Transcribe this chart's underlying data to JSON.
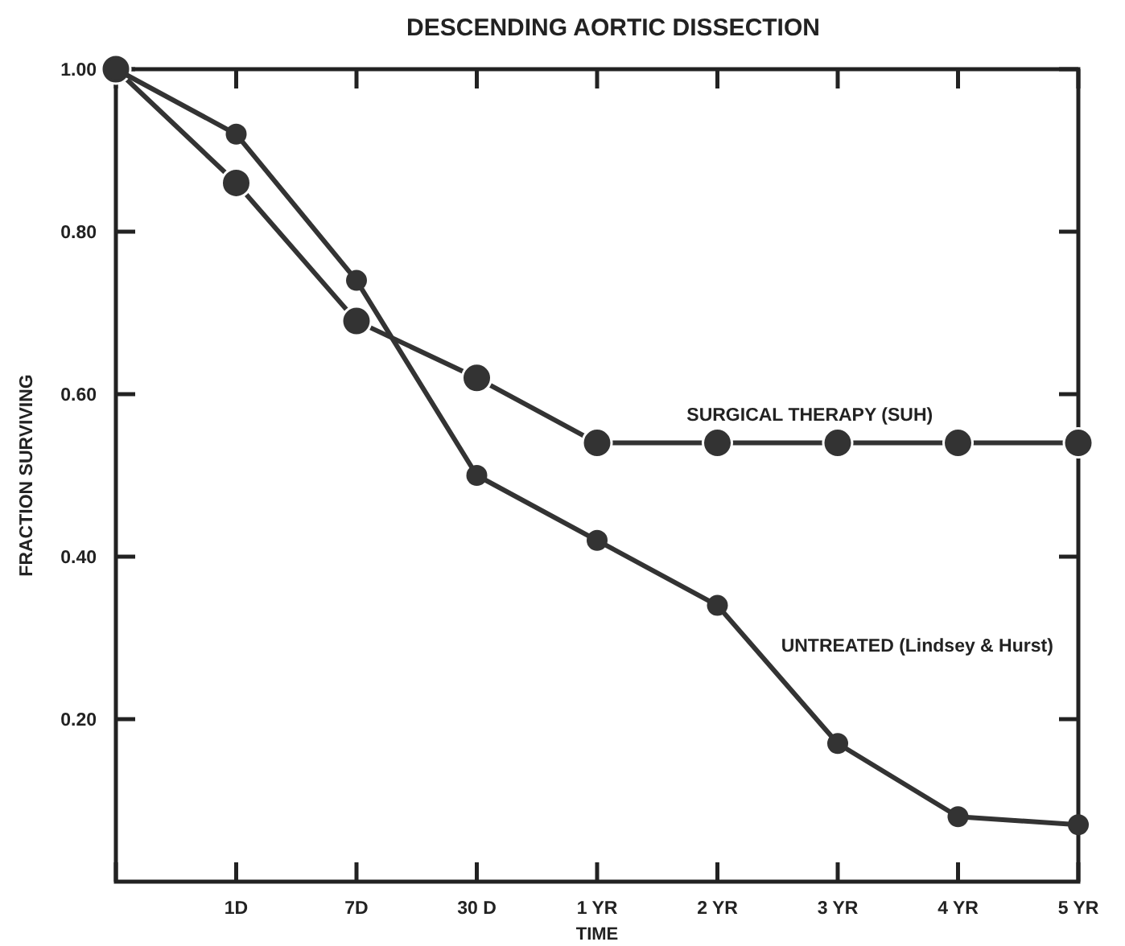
{
  "chart_data": {
    "type": "line",
    "title": "DESCENDING AORTIC DISSECTION",
    "xlabel": "TIME",
    "ylabel": "FRACTION SURVIVING",
    "categories": [
      null,
      "1D",
      "7D",
      "30 D",
      "1 YR",
      "2 YR",
      "3 YR",
      "4 YR",
      "5 YR"
    ],
    "series": [
      {
        "name": "SURGICAL THERAPY (SUH)",
        "color": "#333333",
        "values": [
          1.0,
          0.86,
          0.69,
          0.62,
          0.54,
          0.54,
          0.54,
          0.54,
          0.54
        ]
      },
      {
        "name": "UNTREATED (Lindsey & Hurst)",
        "color": "#333333",
        "values": [
          1.0,
          0.92,
          0.74,
          0.5,
          0.42,
          0.34,
          0.17,
          0.08,
          0.07
        ]
      }
    ],
    "ylim": [
      0,
      1
    ],
    "yticks": [
      {
        "value": 0.2,
        "label": "0.20"
      },
      {
        "value": 0.4,
        "label": "0.40"
      },
      {
        "value": 0.6,
        "label": "0.60"
      },
      {
        "value": 0.8,
        "label": "0.80"
      },
      {
        "value": 1,
        "label": "1.00"
      }
    ],
    "grid": false,
    "marker": "circle",
    "line_style": "solid"
  }
}
